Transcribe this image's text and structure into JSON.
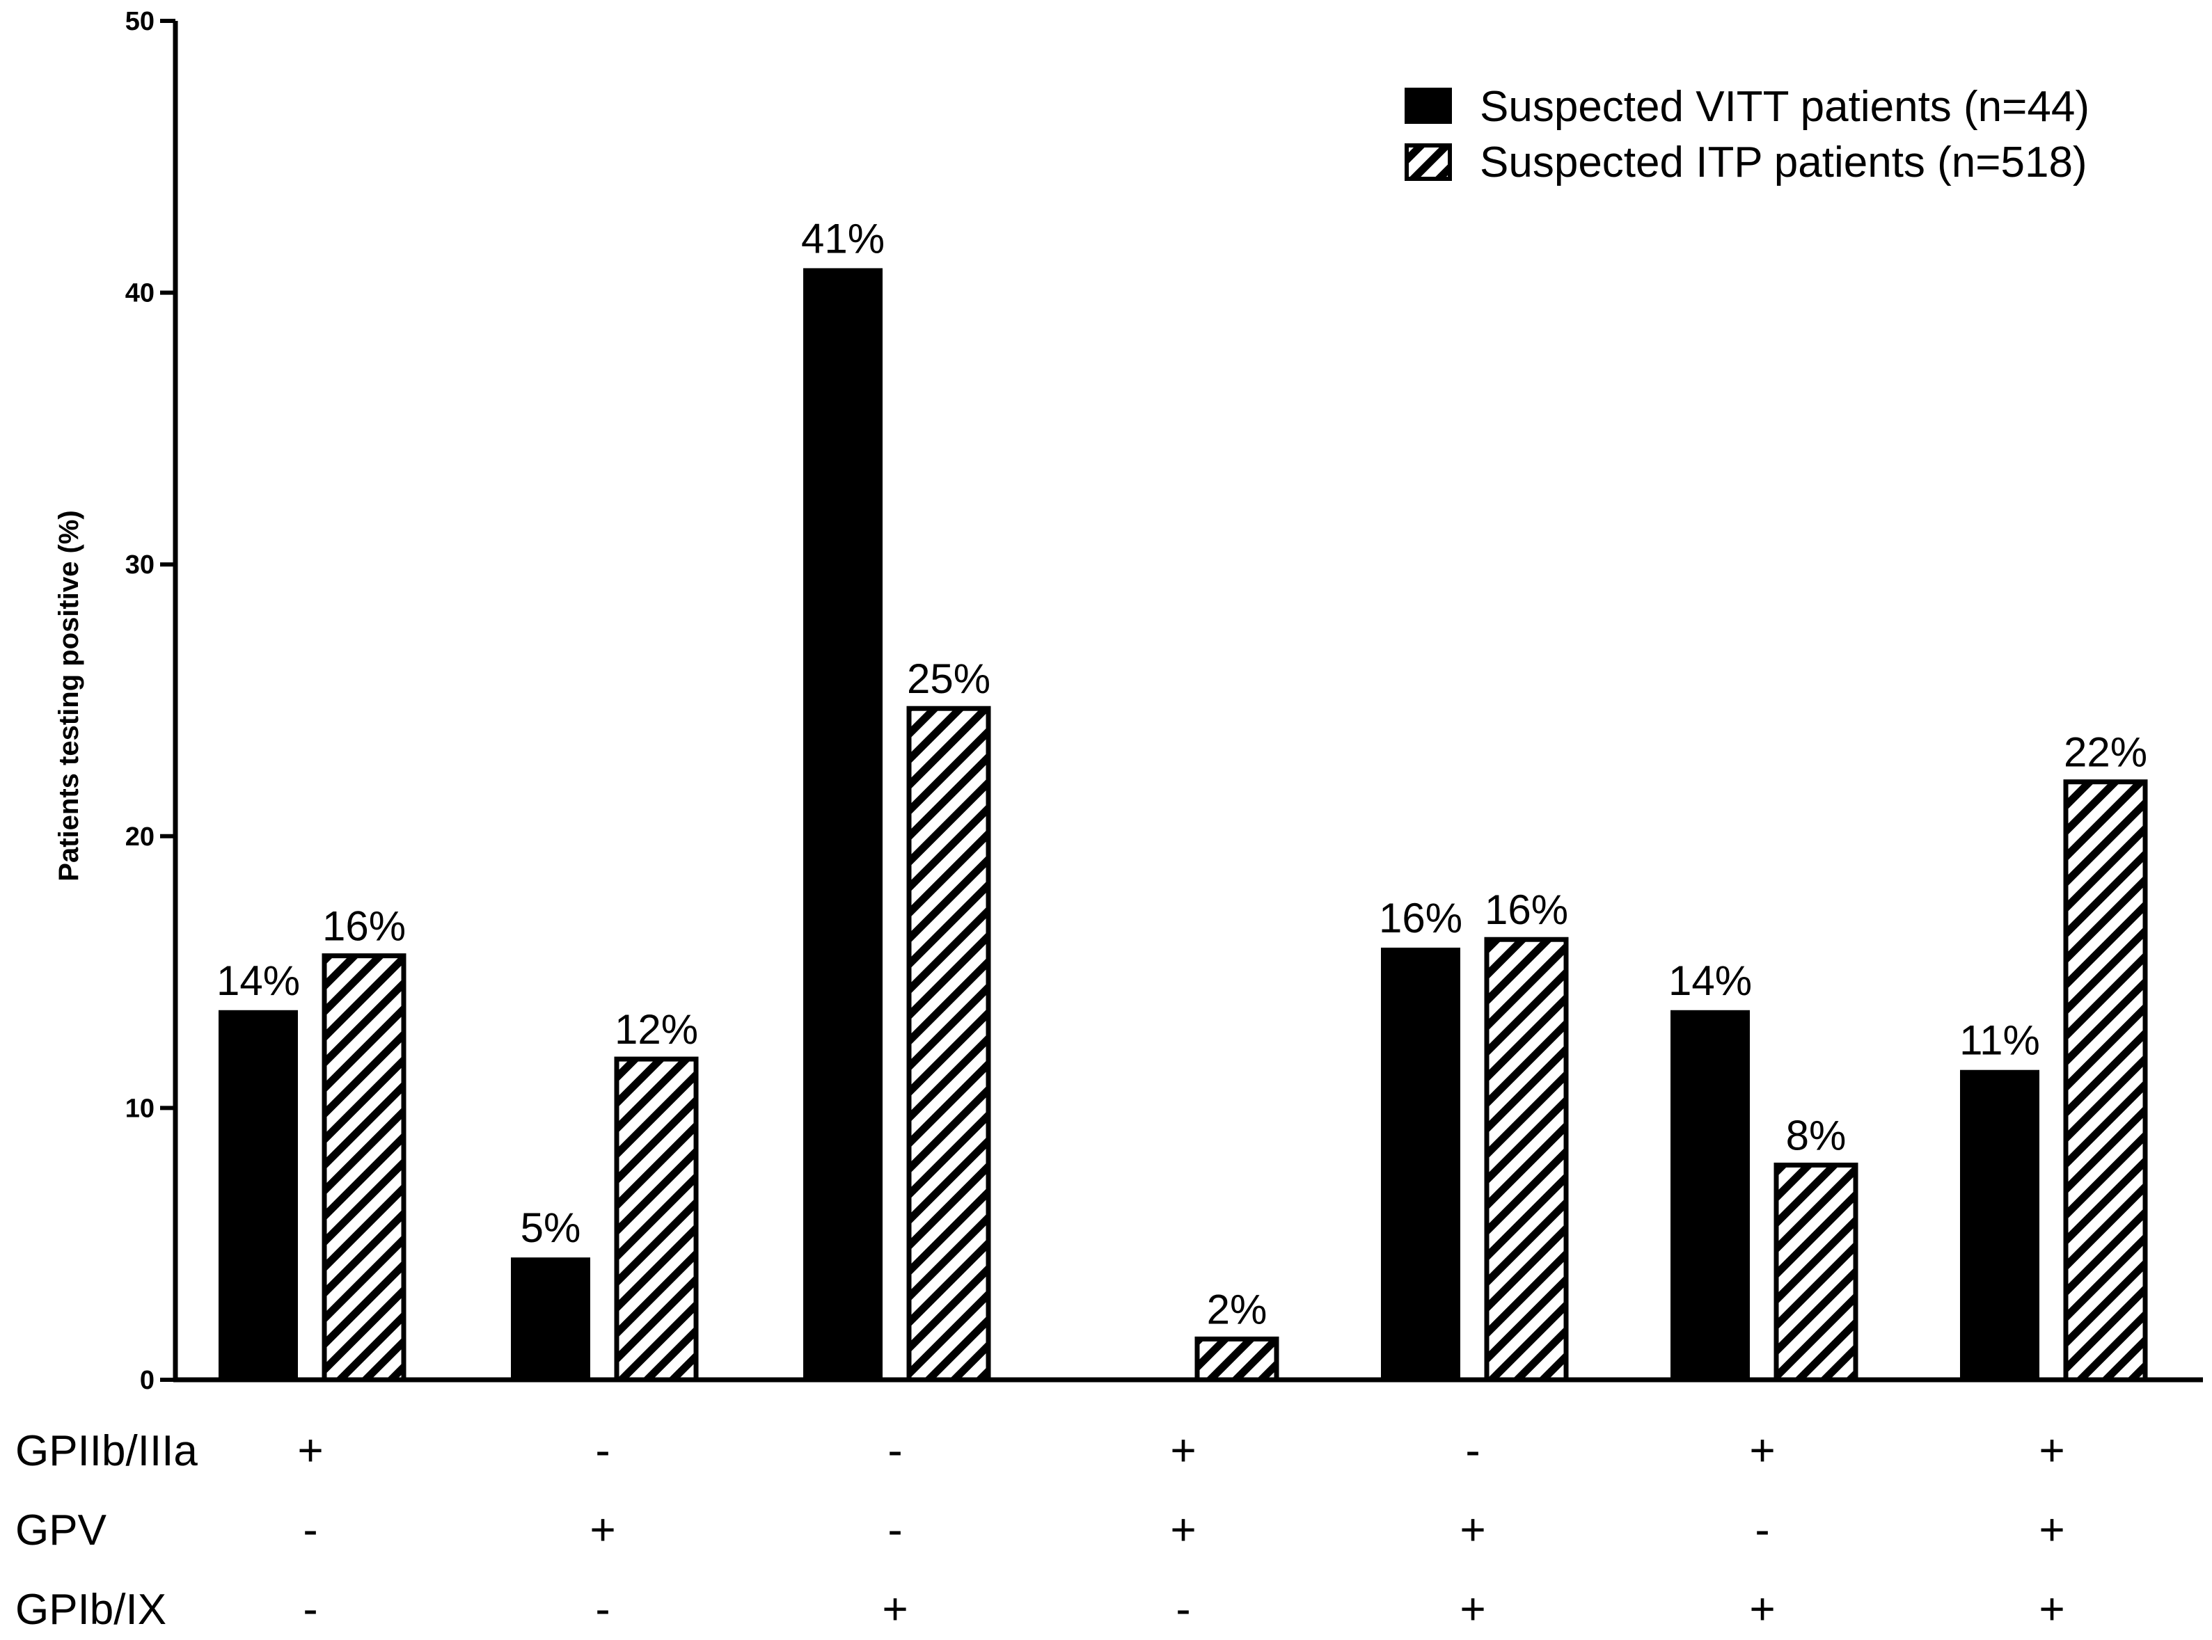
{
  "chart_data": {
    "type": "bar",
    "title": "",
    "xlabel": "",
    "ylabel": "Patients testing positive (%)",
    "ylim": [
      0,
      50
    ],
    "yticks": [
      "0",
      "10",
      "20",
      "30",
      "40",
      "50"
    ],
    "categories": [
      "GPIIb/IIIa+ GPV- GPIb/IX-",
      "GPIIb/IIIa- GPV+ GPIb/IX-",
      "GPIIb/IIIa- GPV- GPIb/IX+",
      "GPIIb/IIIa+ GPV+ GPIb/IX-",
      "GPIIb/IIIa- GPV+ GPIb/IX+",
      "GPIIb/IIIa+ GPV- GPIb/IX+",
      "GPIIb/IIIa+ GPV+ GPIb/IX+"
    ],
    "series": [
      {
        "name": "Suspected VITT patients (n=44)",
        "fill": "solid",
        "color": "#000000",
        "values": [
          13.6,
          4.5,
          40.9,
          0,
          15.9,
          13.6,
          11.4
        ],
        "labels": [
          "14%",
          "5%",
          "41%",
          null,
          "16%",
          "14%",
          "11%"
        ]
      },
      {
        "name": "Suspected ITP patients (n=518)",
        "fill": "hatched",
        "color": "#000000",
        "values": [
          15.6,
          11.8,
          24.7,
          1.5,
          16.2,
          7.9,
          22.0
        ],
        "labels": [
          "16%",
          "12%",
          "25%",
          "2%",
          "16%",
          "8%",
          "22%"
        ]
      }
    ],
    "legend": {
      "position": "top-right",
      "entries": [
        "Suspected VITT patients (n=44)",
        "Suspected ITP patients (n=518)"
      ]
    },
    "category_table": {
      "rows": [
        {
          "label": "GPIIb/IIIa",
          "signs": [
            "+",
            "-",
            "-",
            "+",
            "-",
            "+",
            "+"
          ]
        },
        {
          "label": "GPV",
          "signs": [
            "-",
            "+",
            "-",
            "+",
            "+",
            "-",
            "+"
          ]
        },
        {
          "label": "GPIb/IX",
          "signs": [
            "-",
            "-",
            "+",
            "-",
            "+",
            "+",
            "+"
          ]
        }
      ]
    }
  }
}
